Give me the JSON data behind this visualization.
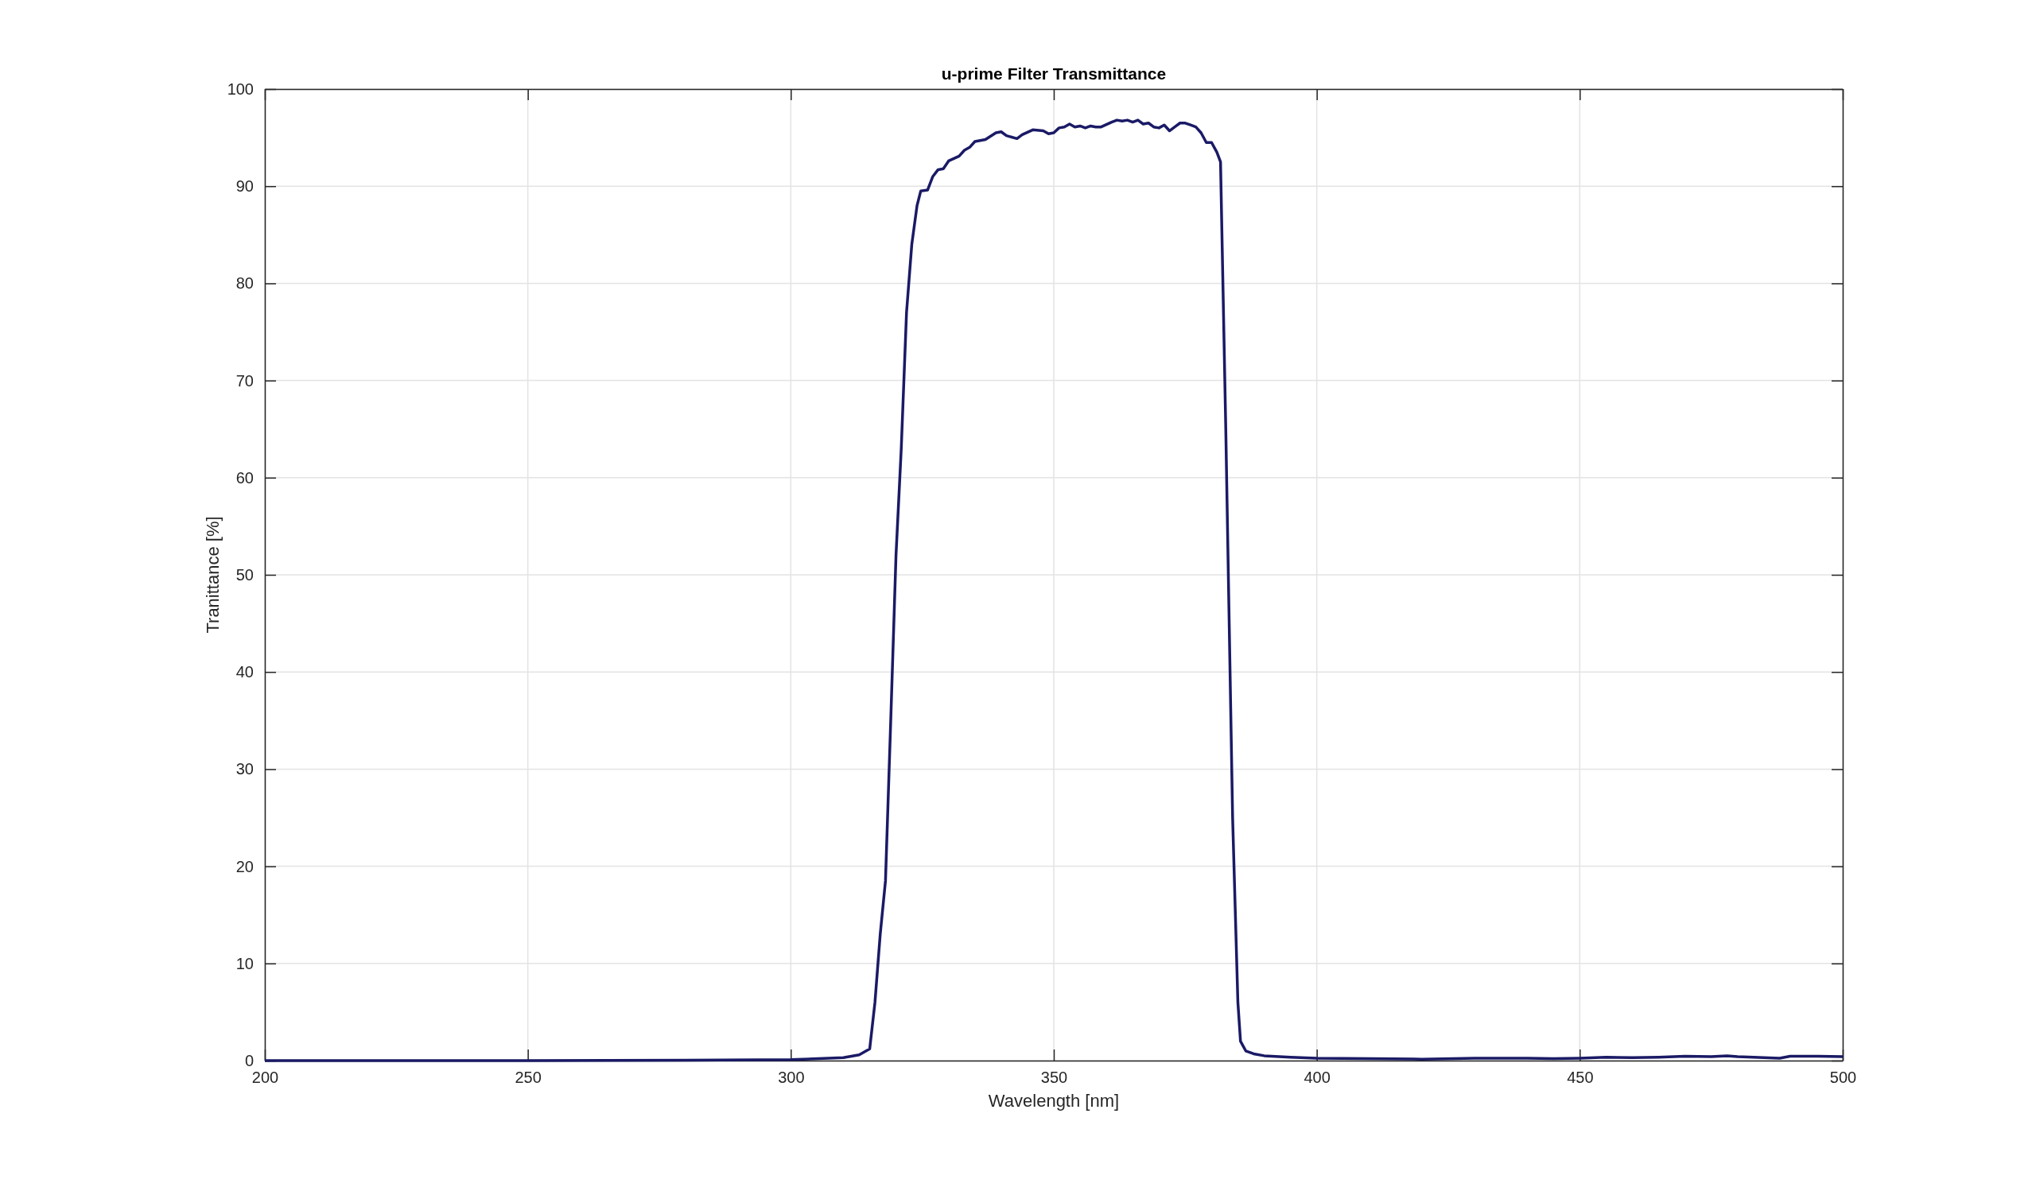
{
  "chart_data": {
    "type": "line",
    "title": "u-prime Filter Transmittance",
    "xlabel": "Wavelength [nm]",
    "ylabel": "Tranittance [%]",
    "xlim": [
      200,
      500
    ],
    "ylim": [
      0,
      100
    ],
    "xticks": [
      200,
      250,
      300,
      350,
      400,
      450,
      500
    ],
    "yticks": [
      0,
      10,
      20,
      30,
      40,
      50,
      60,
      70,
      80,
      90,
      100
    ],
    "grid": true,
    "series": [
      {
        "color": "#1a1a66",
        "x": [
          200,
          250,
          280,
          300,
          310,
          313,
          315,
          316,
          317,
          318,
          319,
          320,
          321,
          322,
          323,
          324,
          324.7,
          326,
          327,
          328,
          329,
          330,
          332,
          333,
          334,
          335,
          337,
          339,
          340,
          341,
          343,
          344,
          346,
          348,
          349,
          350,
          351,
          352,
          353,
          354,
          355,
          356,
          357,
          358,
          359,
          361,
          362,
          363,
          364,
          365,
          366,
          367,
          368,
          369,
          370,
          371,
          372,
          373,
          374,
          375,
          376,
          377,
          378,
          379,
          380,
          381,
          381.7,
          382.7,
          384,
          385,
          385.5,
          386.5,
          388,
          390,
          395,
          400,
          410,
          420,
          430,
          440,
          445,
          450,
          455,
          460,
          465,
          470,
          475,
          478,
          480,
          485,
          488,
          490,
          495,
          500
        ],
        "values": [
          0,
          0,
          0.05,
          0.1,
          0.3,
          0.6,
          1.2,
          6,
          13,
          18.5,
          35,
          52,
          63,
          77,
          84,
          88,
          89.5,
          89.6,
          91,
          91.7,
          91.8,
          92.6,
          93.1,
          93.7,
          94,
          94.6,
          94.8,
          95.5,
          95.6,
          95.2,
          94.9,
          95.3,
          95.8,
          95.7,
          95.4,
          95.5,
          96,
          96.1,
          96.4,
          96.1,
          96.2,
          96,
          96.2,
          96.1,
          96.1,
          96.6,
          96.8,
          96.7,
          96.8,
          96.6,
          96.8,
          96.4,
          96.5,
          96.1,
          96,
          96.3,
          95.7,
          96.1,
          96.5,
          96.5,
          96.3,
          96.1,
          95.5,
          94.5,
          94.5,
          93.5,
          92.5,
          65,
          25,
          6,
          2,
          1,
          0.7,
          0.5,
          0.35,
          0.25,
          0.2,
          0.15,
          0.25,
          0.25,
          0.2,
          0.25,
          0.35,
          0.3,
          0.35,
          0.45,
          0.4,
          0.5,
          0.4,
          0.3,
          0.25,
          0.45,
          0.45,
          0.4
        ]
      }
    ]
  }
}
